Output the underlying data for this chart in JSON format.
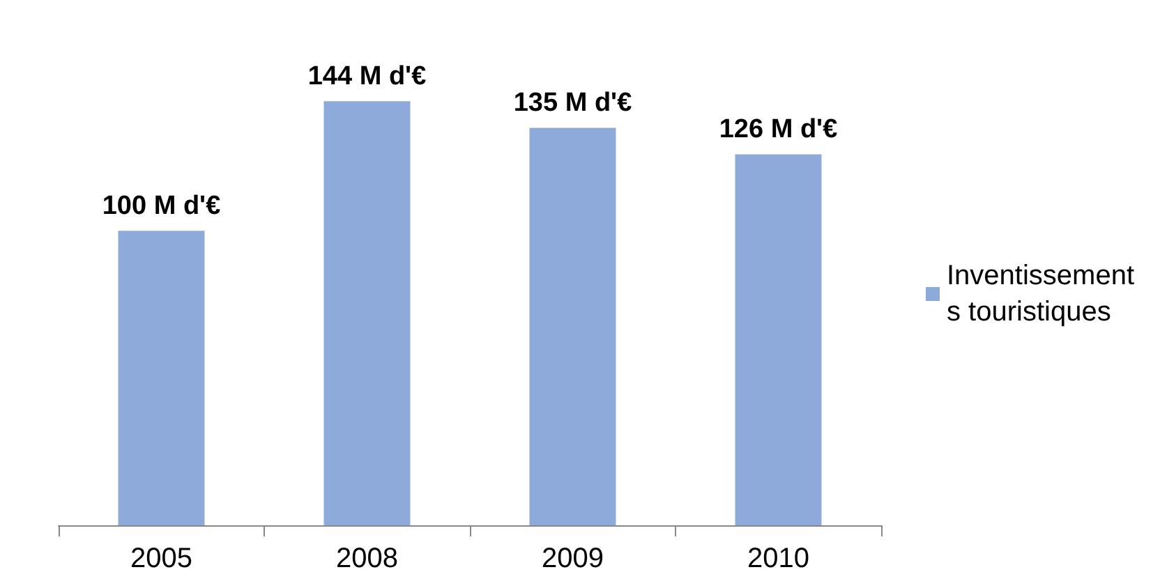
{
  "chart_data": {
    "type": "bar",
    "categories": [
      "2005",
      "2008",
      "2009",
      "2010"
    ],
    "series": [
      {
        "name": "Inventissements touristiques",
        "color": "#8eaadb",
        "values": [
          100,
          144,
          135,
          126
        ],
        "value_labels": [
          "100 M d'€",
          "144 M d'€",
          "135 M d'€",
          "126 M d'€"
        ]
      }
    ],
    "legend": "right"
  }
}
